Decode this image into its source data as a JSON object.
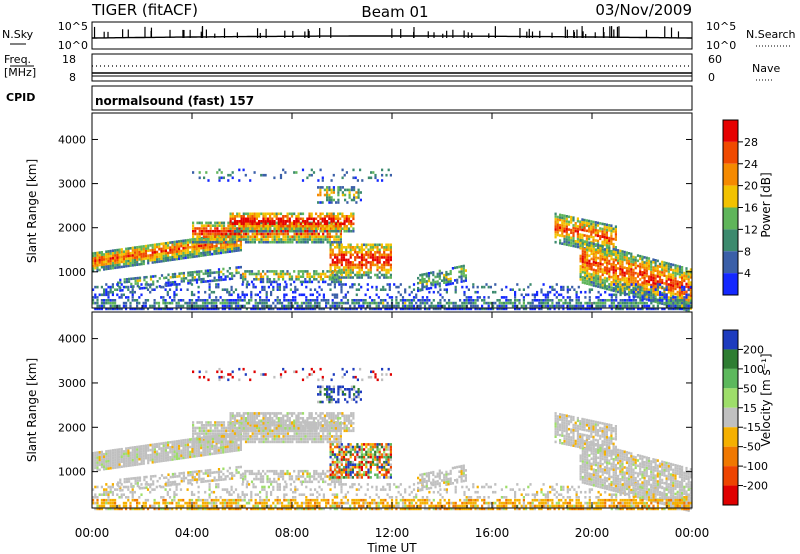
{
  "header": {
    "title": "TIGER (fitACF)",
    "beam": "Beam 01",
    "date": "03/Nov/2009"
  },
  "top_panels": {
    "nsky_label": "N.Sky",
    "nsky_ticks": [
      "10^5",
      "10^0"
    ],
    "nsearch_label": "N.Search",
    "nsearch_ticks": [
      "10^5",
      "10^0"
    ],
    "freq_label_1": "Freq.",
    "freq_label_2": "[MHz]",
    "freq_ticks": [
      "18",
      "8"
    ],
    "nave_label": "Nave",
    "nave_ticks": [
      "60",
      "0"
    ],
    "cpid_label": "CPID",
    "cpid_text": "normalsound (fast) 157"
  },
  "chart_data": [
    {
      "type": "heatmap",
      "name": "power",
      "ylabel": "Slant Range [km]",
      "yticks": [
        1000,
        2000,
        3000,
        4000
      ],
      "ylim": [
        180,
        4600
      ],
      "colorbar_label": "Power [dB]",
      "colorbar_ticks": [
        "4",
        "8",
        "12",
        "16",
        "20",
        "24",
        "28"
      ],
      "colorbar_colors": [
        "#1428ff",
        "#3a5fa8",
        "#3c8a6e",
        "#5fb55a",
        "#f2c200",
        "#f58a00",
        "#f04a00",
        "#e60000"
      ]
    },
    {
      "type": "heatmap",
      "name": "velocity",
      "ylabel": "Slant Range [km]",
      "yticks": [
        1000,
        2000,
        3000,
        4000
      ],
      "ylim": [
        180,
        4600
      ],
      "colorbar_label": "Velocity [m s⁻¹]",
      "colorbar_ticks": [
        "200",
        "100",
        "50",
        "15",
        "-15",
        "-50",
        "-100",
        "-200"
      ],
      "colorbar_colors": [
        "#1e3cbe",
        "#2e7d32",
        "#5cb85c",
        "#9ede6a",
        "#c0c0c0",
        "#f5b000",
        "#f07800",
        "#ee4400",
        "#e00000"
      ]
    }
  ],
  "xaxis": {
    "label": "Time UT",
    "ticks": [
      "00:00",
      "04:00",
      "08:00",
      "12:00",
      "16:00",
      "20:00",
      "00:00"
    ]
  }
}
